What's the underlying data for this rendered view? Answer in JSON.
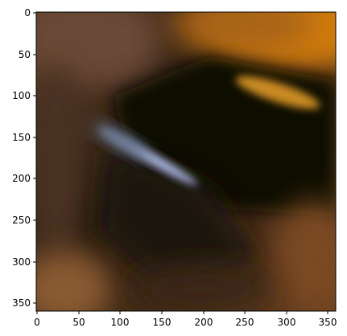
{
  "image": {
    "description_type": "blurred photo displayed on image axes",
    "colors": {
      "frame": "#000000",
      "background": "#ffffff"
    },
    "x_axis": {
      "range": [
        0,
        360
      ],
      "tick_labels": [
        "0",
        "50",
        "100",
        "150",
        "200",
        "250",
        "300",
        "350"
      ]
    },
    "y_axis": {
      "range": [
        0,
        360
      ],
      "inverted": true,
      "tick_labels": [
        "0",
        "50",
        "100",
        "150",
        "200",
        "250",
        "300",
        "350"
      ]
    }
  }
}
